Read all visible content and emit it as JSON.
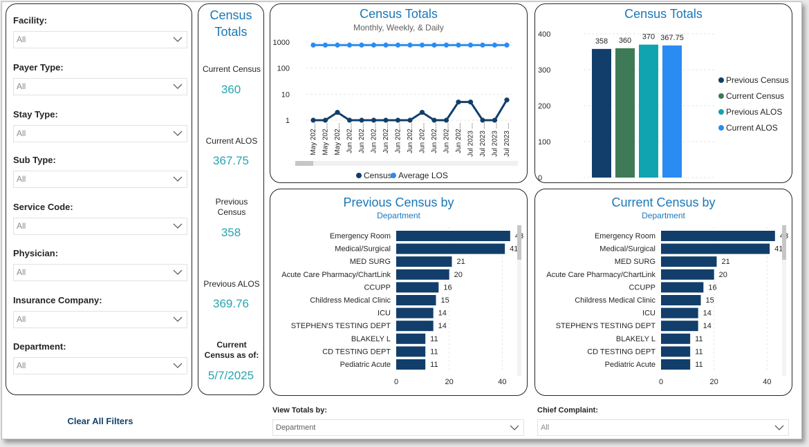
{
  "filters": [
    {
      "label": "Facility:",
      "value": "All"
    },
    {
      "label": "Payer Type:",
      "value": "All"
    },
    {
      "label": "Stay Type:",
      "value": "All"
    },
    {
      "label": "Sub Type:",
      "value": "All"
    },
    {
      "label": "Service Code:",
      "value": "All"
    },
    {
      "label": "Physician:",
      "value": "All"
    },
    {
      "label": "Insurance Company:",
      "value": "All"
    },
    {
      "label": "Department:",
      "value": "All"
    }
  ],
  "kpi": {
    "title": "Census Totals",
    "current_census_label": "Current Census",
    "current_census_value": "360",
    "current_alos_label": "Current ALOS",
    "current_alos_value": "367.75",
    "previous_census_label": "Previous Census",
    "previous_census_value": "358",
    "previous_alos_label": "Previous ALOS",
    "previous_alos_value": "369.76",
    "as_of_label": "Current Census as of:",
    "as_of_value": "5/7/2025"
  },
  "clear_filters": "Clear All Filters",
  "bottom": {
    "view_totals_label": "View Totals by:",
    "view_totals_value": "Department",
    "chief_complaint_label": "Chief Complaint:",
    "chief_complaint_value": "All"
  },
  "colors": {
    "title_blue": "#1a77b8",
    "navy": "#123e6b",
    "green": "#3e7a55",
    "teal": "#10a3b0",
    "light_blue": "#2a8bf2",
    "kpi_teal": "#27a3b1"
  },
  "chart_data": [
    {
      "id": "line",
      "type": "line",
      "title": "Census Totals",
      "subtitle": "Monthly, Weekly, & Daily",
      "yscale": "log",
      "ylim": [
        1,
        1000
      ],
      "yticks": [
        "1000",
        "100",
        "10",
        "1"
      ],
      "categories": [
        "May 202...",
        "May 202...",
        "May 202...",
        "Jun 202...",
        "Jun 202...",
        "Jun 202...",
        "Jun 202...",
        "Jun 202...",
        "Jun 202...",
        "Jun 202...",
        "Jun 202...",
        "Jun 202...",
        "Jun 202...",
        "Jul 2023 ...",
        "Jul 2023 ...",
        "Jul 2023 ...",
        "Jul 2023 ..."
      ],
      "series": [
        {
          "name": "Census",
          "values": [
            1,
            1,
            2,
            1,
            1,
            1,
            1,
            1,
            1,
            2,
            1,
            1,
            5,
            5,
            1,
            1,
            6
          ]
        },
        {
          "name": "Average LOS",
          "values": [
            770,
            770,
            770,
            770,
            770,
            770,
            770,
            770,
            770,
            770,
            770,
            770,
            770,
            770,
            770,
            770,
            770
          ]
        }
      ]
    },
    {
      "id": "bar",
      "type": "bar",
      "title": "Census Totals",
      "ylim": [
        0,
        400
      ],
      "yticks": [
        "400",
        "300",
        "200",
        "100",
        "0"
      ],
      "categories": [
        "Previous Census",
        "Current Census",
        "Previous ALOS",
        "Current ALOS"
      ],
      "values": [
        358,
        360,
        370,
        367.75
      ],
      "value_labels": [
        "358",
        "360",
        "370",
        "367.75"
      ]
    },
    {
      "id": "prev",
      "type": "bar",
      "orientation": "horizontal",
      "title": "Previous Census by",
      "subtitle": "Department",
      "xlim": [
        0,
        48
      ],
      "xticks": [
        "0",
        "20",
        "40"
      ],
      "categories": [
        "Emergency Room",
        "Medical/Surgical",
        "MED SURG",
        "Acute Care Pharmacy/ChartLink",
        "CCUPP",
        "Childress Medical Clinic",
        "ICU",
        "STEPHEN'S TESTING DEPT",
        "BLAKELY L",
        "CD TESTING DEPT",
        "Pediatric Acute"
      ],
      "values": [
        43,
        41,
        21,
        20,
        16,
        15,
        14,
        14,
        11,
        11,
        11
      ]
    },
    {
      "id": "curr",
      "type": "bar",
      "orientation": "horizontal",
      "title": "Current Census by",
      "subtitle": "Department",
      "xlim": [
        0,
        48
      ],
      "xticks": [
        "0",
        "20",
        "40"
      ],
      "categories": [
        "Emergency Room",
        "Medical/Surgical",
        "MED SURG",
        "Acute Care Pharmacy/ChartLink",
        "CCUPP",
        "Childress Medical Clinic",
        "ICU",
        "STEPHEN'S TESTING DEPT",
        "BLAKELY L",
        "CD TESTING DEPT",
        "Pediatric Acute"
      ],
      "values": [
        43,
        41,
        21,
        20,
        16,
        15,
        14,
        14,
        11,
        11,
        11
      ]
    }
  ]
}
